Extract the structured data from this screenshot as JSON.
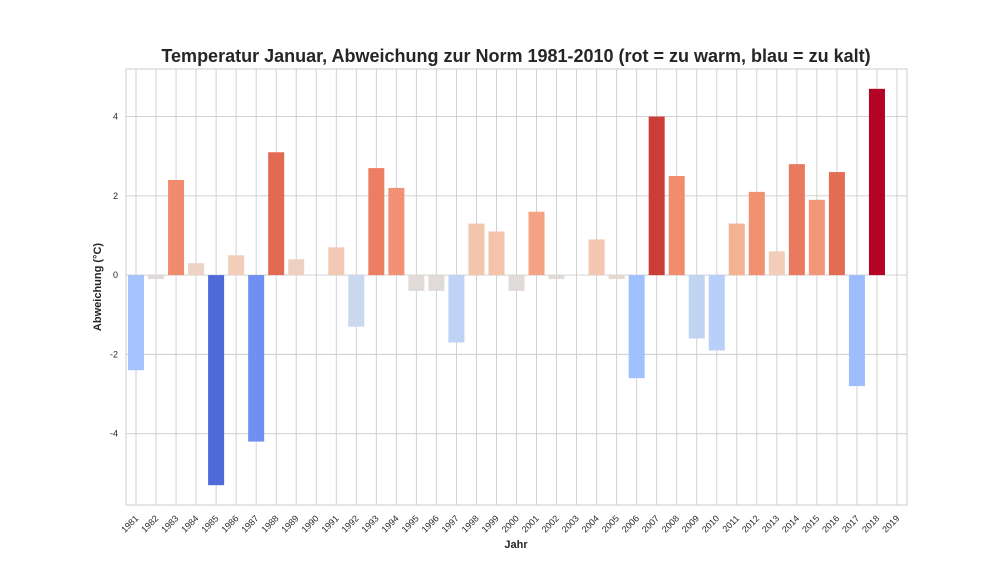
{
  "chart_data": {
    "type": "bar",
    "title": "Temperatur Januar, Abweichung zur Norm 1981-2010 (rot = zu warm, blau = zu kalt)",
    "xlabel": "Jahr",
    "ylabel": "Abweichung (°C)",
    "grid": true,
    "ylim": [
      -5.8,
      5.2
    ],
    "yticks": [
      -4,
      -2,
      0,
      2,
      4
    ],
    "colormap": "coolwarm",
    "categories": [
      "1981",
      "1982",
      "1983",
      "1984",
      "1985",
      "1986",
      "1987",
      "1988",
      "1989",
      "1990",
      "1991",
      "1992",
      "1993",
      "1994",
      "1995",
      "1996",
      "1997",
      "1998",
      "1999",
      "2000",
      "2001",
      "2002",
      "2003",
      "2004",
      "2005",
      "2006",
      "2007",
      "2008",
      "2009",
      "2010",
      "2011",
      "2012",
      "2013",
      "2014",
      "2015",
      "2016",
      "2017",
      "2018",
      "2019"
    ],
    "values": [
      -2.4,
      -0.1,
      2.4,
      0.3,
      -5.3,
      0.5,
      -4.2,
      3.1,
      0.4,
      0.0,
      0.7,
      -1.3,
      2.7,
      2.2,
      -0.4,
      -0.4,
      -1.7,
      1.3,
      1.1,
      -0.4,
      1.6,
      -0.1,
      0.0,
      0.9,
      -0.1,
      -2.6,
      4.0,
      2.5,
      -1.6,
      -1.9,
      1.3,
      2.1,
      0.6,
      2.8,
      1.9,
      2.6,
      -2.8,
      4.7,
      0.0
    ],
    "colors": [
      "#a5c3fe",
      "#e0dbd8",
      "#f08b6e",
      "#ecd3c5",
      "#4f69d9",
      "#f1cdba",
      "#6e90f2",
      "#e26952",
      "#eed0c0",
      "#dddcdc",
      "#f2c9b4",
      "#c9d7ef",
      "#ec7f63",
      "#f29274",
      "#e0dbd8",
      "#e0dbd8",
      "#bfd3f6",
      "#f4c5ad",
      "#f5c2aa",
      "#e0dbd8",
      "#f6a385",
      "#e0dbd8",
      "#dddcdc",
      "#f3c7b1",
      "#e5d8d1",
      "#a1c0ff",
      "#cb3e38",
      "#f18d6f",
      "#c1d4f4",
      "#b7cff9",
      "#f5b194",
      "#f29072",
      "#f1cdba",
      "#e97a5f",
      "#f39778",
      "#e36c55",
      "#9dbdff",
      "#b40426",
      "#dddcdc"
    ]
  }
}
